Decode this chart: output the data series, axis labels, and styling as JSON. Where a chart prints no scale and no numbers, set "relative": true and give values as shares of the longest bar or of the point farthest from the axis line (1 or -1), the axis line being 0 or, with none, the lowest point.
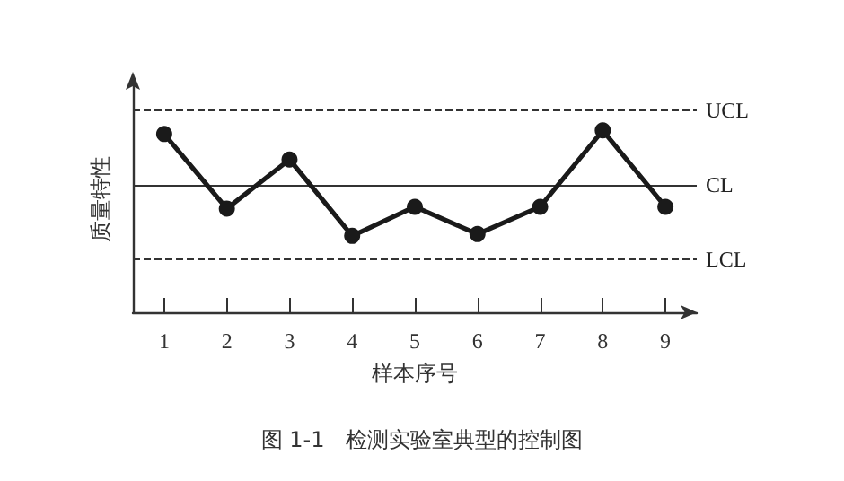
{
  "chart_data": {
    "type": "line",
    "title": "图 1-1　检测实验室典型的控制图",
    "xlabel": "样本序号",
    "ylabel": "质量特性",
    "relative": true,
    "categories": [
      "1",
      "2",
      "3",
      "4",
      "5",
      "6",
      "7",
      "8",
      "9"
    ],
    "series": [
      {
        "color": "#1a1a1a",
        "values": [
          0.98,
          0.57,
          0.84,
          0.42,
          0.58,
          0.43,
          0.58,
          1,
          0.58
        ]
      }
    ],
    "marker": "circle",
    "line_style": "solid",
    "grid": false,
    "ref_lines": [
      {
        "axis": "y",
        "value": 1.11,
        "label": "UCL",
        "line_style": "dashed",
        "color": "#333333"
      },
      {
        "axis": "y",
        "value": 0.7,
        "label": "CL",
        "line_style": "solid",
        "color": "#333333"
      },
      {
        "axis": "y",
        "value": 0.29,
        "label": "LCL",
        "line_style": "dashed",
        "color": "#333333"
      }
    ]
  }
}
